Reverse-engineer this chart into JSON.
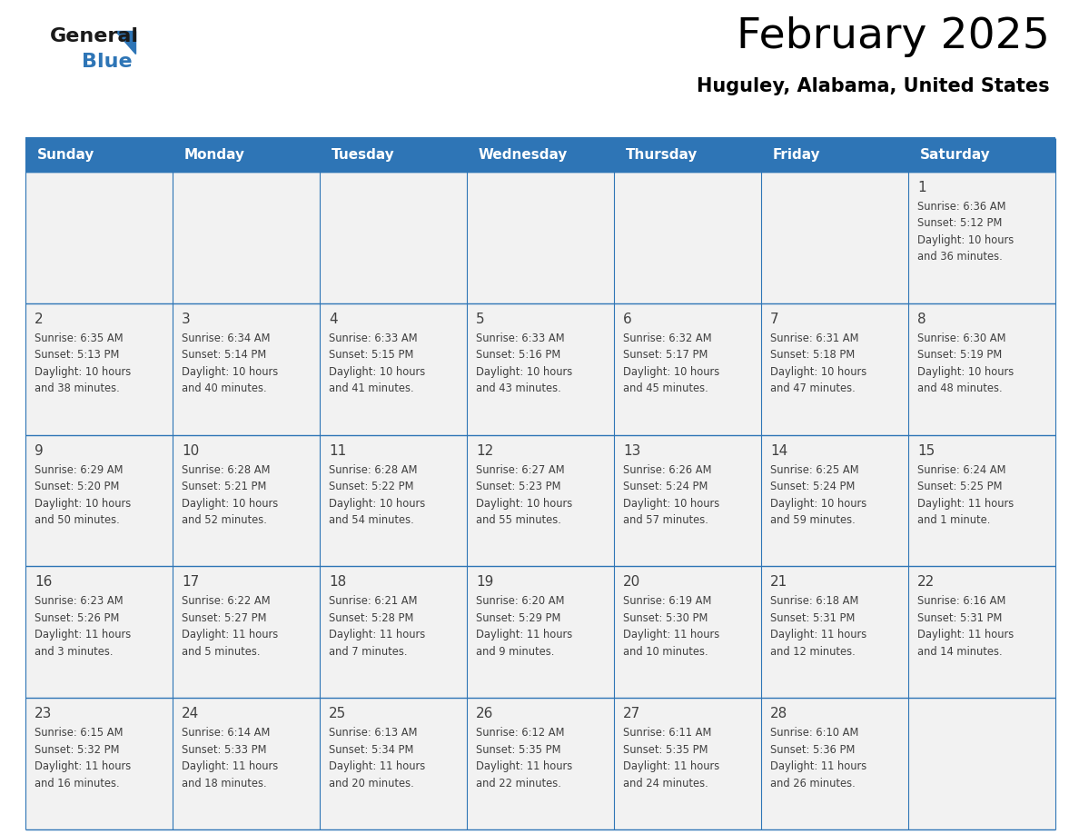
{
  "title": "February 2025",
  "subtitle": "Huguley, Alabama, United States",
  "days_of_week": [
    "Sunday",
    "Monday",
    "Tuesday",
    "Wednesday",
    "Thursday",
    "Friday",
    "Saturday"
  ],
  "header_bg": "#2e75b6",
  "header_text": "#ffffff",
  "cell_bg": "#f2f2f2",
  "border_color": "#2e75b6",
  "text_color": "#404040",
  "day_num_color": "#404040",
  "logo_general_color": "#1a1a1a",
  "logo_blue_color": "#2e75b6",
  "logo_triangle_color": "#2e75b6",
  "calendar": [
    [
      null,
      null,
      null,
      null,
      null,
      null,
      {
        "day": 1,
        "sunrise": "6:36 AM",
        "sunset": "5:12 PM",
        "daylight": "10 hours",
        "daylight2": "and 36 minutes."
      }
    ],
    [
      {
        "day": 2,
        "sunrise": "6:35 AM",
        "sunset": "5:13 PM",
        "daylight": "10 hours",
        "daylight2": "and 38 minutes."
      },
      {
        "day": 3,
        "sunrise": "6:34 AM",
        "sunset": "5:14 PM",
        "daylight": "10 hours",
        "daylight2": "and 40 minutes."
      },
      {
        "day": 4,
        "sunrise": "6:33 AM",
        "sunset": "5:15 PM",
        "daylight": "10 hours",
        "daylight2": "and 41 minutes."
      },
      {
        "day": 5,
        "sunrise": "6:33 AM",
        "sunset": "5:16 PM",
        "daylight": "10 hours",
        "daylight2": "and 43 minutes."
      },
      {
        "day": 6,
        "sunrise": "6:32 AM",
        "sunset": "5:17 PM",
        "daylight": "10 hours",
        "daylight2": "and 45 minutes."
      },
      {
        "day": 7,
        "sunrise": "6:31 AM",
        "sunset": "5:18 PM",
        "daylight": "10 hours",
        "daylight2": "and 47 minutes."
      },
      {
        "day": 8,
        "sunrise": "6:30 AM",
        "sunset": "5:19 PM",
        "daylight": "10 hours",
        "daylight2": "and 48 minutes."
      }
    ],
    [
      {
        "day": 9,
        "sunrise": "6:29 AM",
        "sunset": "5:20 PM",
        "daylight": "10 hours",
        "daylight2": "and 50 minutes."
      },
      {
        "day": 10,
        "sunrise": "6:28 AM",
        "sunset": "5:21 PM",
        "daylight": "10 hours",
        "daylight2": "and 52 minutes."
      },
      {
        "day": 11,
        "sunrise": "6:28 AM",
        "sunset": "5:22 PM",
        "daylight": "10 hours",
        "daylight2": "and 54 minutes."
      },
      {
        "day": 12,
        "sunrise": "6:27 AM",
        "sunset": "5:23 PM",
        "daylight": "10 hours",
        "daylight2": "and 55 minutes."
      },
      {
        "day": 13,
        "sunrise": "6:26 AM",
        "sunset": "5:24 PM",
        "daylight": "10 hours",
        "daylight2": "and 57 minutes."
      },
      {
        "day": 14,
        "sunrise": "6:25 AM",
        "sunset": "5:24 PM",
        "daylight": "10 hours",
        "daylight2": "and 59 minutes."
      },
      {
        "day": 15,
        "sunrise": "6:24 AM",
        "sunset": "5:25 PM",
        "daylight": "11 hours",
        "daylight2": "and 1 minute."
      }
    ],
    [
      {
        "day": 16,
        "sunrise": "6:23 AM",
        "sunset": "5:26 PM",
        "daylight": "11 hours",
        "daylight2": "and 3 minutes."
      },
      {
        "day": 17,
        "sunrise": "6:22 AM",
        "sunset": "5:27 PM",
        "daylight": "11 hours",
        "daylight2": "and 5 minutes."
      },
      {
        "day": 18,
        "sunrise": "6:21 AM",
        "sunset": "5:28 PM",
        "daylight": "11 hours",
        "daylight2": "and 7 minutes."
      },
      {
        "day": 19,
        "sunrise": "6:20 AM",
        "sunset": "5:29 PM",
        "daylight": "11 hours",
        "daylight2": "and 9 minutes."
      },
      {
        "day": 20,
        "sunrise": "6:19 AM",
        "sunset": "5:30 PM",
        "daylight": "11 hours",
        "daylight2": "and 10 minutes."
      },
      {
        "day": 21,
        "sunrise": "6:18 AM",
        "sunset": "5:31 PM",
        "daylight": "11 hours",
        "daylight2": "and 12 minutes."
      },
      {
        "day": 22,
        "sunrise": "6:16 AM",
        "sunset": "5:31 PM",
        "daylight": "11 hours",
        "daylight2": "and 14 minutes."
      }
    ],
    [
      {
        "day": 23,
        "sunrise": "6:15 AM",
        "sunset": "5:32 PM",
        "daylight": "11 hours",
        "daylight2": "and 16 minutes."
      },
      {
        "day": 24,
        "sunrise": "6:14 AM",
        "sunset": "5:33 PM",
        "daylight": "11 hours",
        "daylight2": "and 18 minutes."
      },
      {
        "day": 25,
        "sunrise": "6:13 AM",
        "sunset": "5:34 PM",
        "daylight": "11 hours",
        "daylight2": "and 20 minutes."
      },
      {
        "day": 26,
        "sunrise": "6:12 AM",
        "sunset": "5:35 PM",
        "daylight": "11 hours",
        "daylight2": "and 22 minutes."
      },
      {
        "day": 27,
        "sunrise": "6:11 AM",
        "sunset": "5:35 PM",
        "daylight": "11 hours",
        "daylight2": "and 24 minutes."
      },
      {
        "day": 28,
        "sunrise": "6:10 AM",
        "sunset": "5:36 PM",
        "daylight": "11 hours",
        "daylight2": "and 26 minutes."
      },
      null
    ]
  ]
}
